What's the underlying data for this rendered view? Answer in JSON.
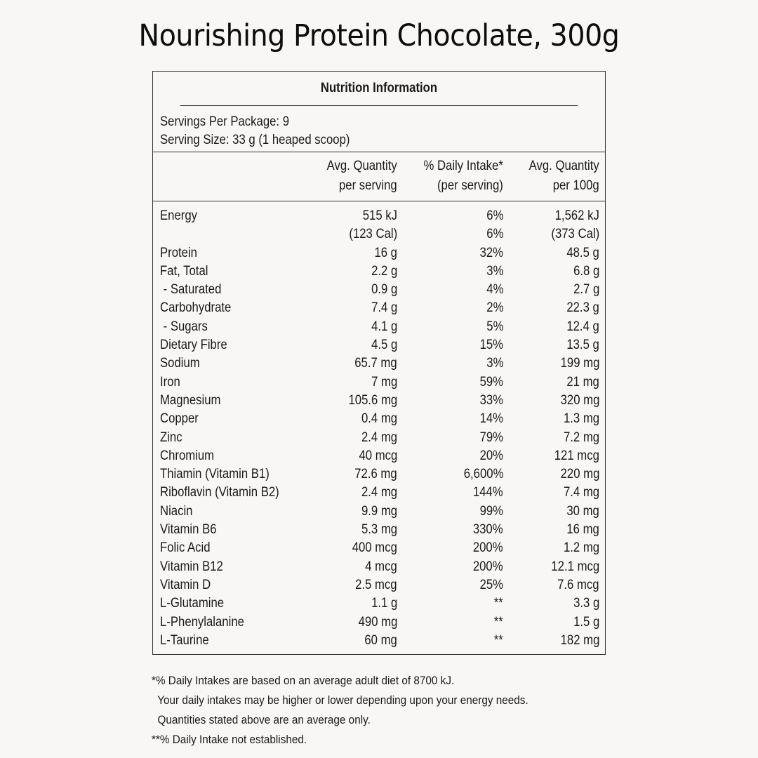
{
  "title": "Nourishing Protein Chocolate, 300g",
  "panel": {
    "heading": "Nutrition Information",
    "servings_per_package": "Servings Per Package: 9",
    "serving_size": "Serving Size: 33 g (1 heaped scoop)",
    "columns": [
      {
        "line1": "Avg. Quantity",
        "line2": "per serving"
      },
      {
        "line1": "% Daily Intake*",
        "line2": "(per serving)"
      },
      {
        "line1": "Avg. Quantity",
        "line2": "per 100g"
      }
    ],
    "rows": [
      {
        "name": "Energy",
        "per_serving": "515 kJ",
        "daily_intake": "6%",
        "per_100g": "1,562 kJ"
      },
      {
        "name": "",
        "per_serving": "(123 Cal)",
        "daily_intake": "6%",
        "per_100g": "(373 Cal)"
      },
      {
        "name": "Protein",
        "per_serving": "16 g",
        "daily_intake": "32%",
        "per_100g": "48.5 g"
      },
      {
        "name": "Fat, Total",
        "per_serving": "2.2 g",
        "daily_intake": "3%",
        "per_100g": "6.8 g"
      },
      {
        "name": " - Saturated",
        "per_serving": "0.9 g",
        "daily_intake": "4%",
        "per_100g": "2.7 g"
      },
      {
        "name": "Carbohydrate",
        "per_serving": "7.4 g",
        "daily_intake": "2%",
        "per_100g": "22.3 g"
      },
      {
        "name": " - Sugars",
        "per_serving": "4.1 g",
        "daily_intake": "5%",
        "per_100g": "12.4 g"
      },
      {
        "name": "Dietary Fibre",
        "per_serving": "4.5 g",
        "daily_intake": "15%",
        "per_100g": "13.5 g"
      },
      {
        "name": "Sodium",
        "per_serving": "65.7 mg",
        "daily_intake": "3%",
        "per_100g": "199 mg"
      },
      {
        "name": "Iron",
        "per_serving": "7 mg",
        "daily_intake": "59%",
        "per_100g": "21 mg"
      },
      {
        "name": "Magnesium",
        "per_serving": "105.6 mg",
        "daily_intake": "33%",
        "per_100g": "320 mg"
      },
      {
        "name": "Copper",
        "per_serving": "0.4 mg",
        "daily_intake": "14%",
        "per_100g": "1.3 mg"
      },
      {
        "name": "Zinc",
        "per_serving": "2.4 mg",
        "daily_intake": "79%",
        "per_100g": "7.2 mg"
      },
      {
        "name": "Chromium",
        "per_serving": "40 mcg",
        "daily_intake": "20%",
        "per_100g": "121 mcg"
      },
      {
        "name": "Thiamin (Vitamin B1)",
        "per_serving": "72.6 mg",
        "daily_intake": "6,600%",
        "per_100g": "220 mg"
      },
      {
        "name": "Riboflavin (Vitamin B2)",
        "per_serving": "2.4 mg",
        "daily_intake": "144%",
        "per_100g": "7.4 mg"
      },
      {
        "name": "Niacin",
        "per_serving": "9.9 mg",
        "daily_intake": "99%",
        "per_100g": "30 mg"
      },
      {
        "name": "Vitamin B6",
        "per_serving": "5.3 mg",
        "daily_intake": "330%",
        "per_100g": "16 mg"
      },
      {
        "name": "Folic Acid",
        "per_serving": "400 mcg",
        "daily_intake": "200%",
        "per_100g": "1.2 mg"
      },
      {
        "name": "Vitamin B12",
        "per_serving": "4 mcg",
        "daily_intake": "200%",
        "per_100g": "12.1 mcg"
      },
      {
        "name": "Vitamin D",
        "per_serving": "2.5 mcg",
        "daily_intake": "25%",
        "per_100g": "7.6 mcg"
      },
      {
        "name": "L-Glutamine",
        "per_serving": "1.1 g",
        "daily_intake": "**",
        "per_100g": "3.3 g"
      },
      {
        "name": "L-Phenylalanine",
        "per_serving": "490 mg",
        "daily_intake": "**",
        "per_100g": "1.5 g"
      },
      {
        "name": "L-Taurine",
        "per_serving": "60 mg",
        "daily_intake": "**",
        "per_100g": "182 mg"
      }
    ]
  },
  "footnotes": [
    "*% Daily Intakes are based on an average adult diet of 8700 kJ.",
    "  Your daily intakes may be higher or lower depending upon your energy needs.",
    "  Quantities stated above are an average only.",
    "**% Daily Intake not established."
  ]
}
